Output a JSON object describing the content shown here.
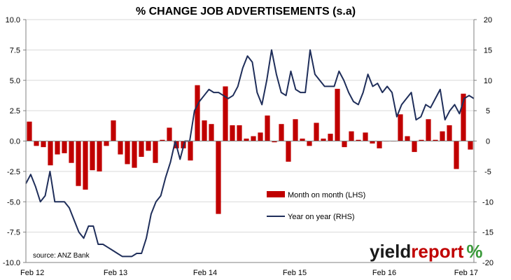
{
  "chart_data": {
    "type": "bar",
    "title": "% CHANGE JOB ADVERTISEMENTS (s.a)",
    "source": "source: ANZ Bank",
    "logo": {
      "text_dark": "yield",
      "text_accent": "report",
      "symbol": "%",
      "colors": {
        "dark": "#1a1a1a",
        "accent": "#c00000",
        "symbol": "#3a9a3a"
      }
    },
    "x_tick_labels": [
      "Feb 12",
      "Feb 13",
      "Feb 14",
      "Feb 15",
      "Feb 16",
      "Feb 17"
    ],
    "y_left": {
      "ticks": [
        "10.0",
        "7.5",
        "5.0",
        "2.5",
        "0.0",
        "-2.5",
        "-5.0",
        "-7.5",
        "-10.0"
      ],
      "ylim": [
        -10,
        10
      ]
    },
    "y_right": {
      "ticks": [
        "20",
        "15",
        "10",
        "5",
        "0",
        "-5",
        "-10",
        "-15",
        "-20"
      ],
      "ylim": [
        -20,
        20
      ]
    },
    "grid": "horizontal",
    "legend_position": "lower-center",
    "series": [
      {
        "name": "Month on month (LHS)",
        "axis": "left",
        "kind": "bar",
        "color": "#c00000",
        "values": [
          1.6,
          -0.4,
          -0.5,
          -2.0,
          -1.1,
          -1.0,
          -1.8,
          -3.7,
          -4.0,
          -2.4,
          -2.5,
          -0.4,
          1.7,
          -1.1,
          -1.9,
          -2.2,
          -1.3,
          -0.8,
          -1.8,
          0.1,
          1.1,
          -0.6,
          -0.6,
          -1.6,
          4.6,
          1.7,
          1.4,
          -6.0,
          4.5,
          1.3,
          1.3,
          0.2,
          0.4,
          0.7,
          2.1,
          -0.1,
          1.4,
          -1.7,
          1.8,
          0.2,
          -0.4,
          1.5,
          0.2,
          0.6,
          4.3,
          -0.5,
          0.8,
          0.1,
          0.7,
          -0.2,
          -0.6,
          0.0,
          0.0,
          2.2,
          0.4,
          -0.9,
          0.1,
          1.8,
          0.1,
          0.8,
          1.3,
          -2.3,
          3.9,
          -0.7
        ]
      },
      {
        "name": "Year on year (RHS)",
        "axis": "right",
        "kind": "line",
        "color": "#1f2e5a",
        "values": [
          -7,
          -5.5,
          -7.5,
          -10,
          -9,
          -5,
          -10,
          -10,
          -10,
          -11,
          -13,
          -15,
          -16,
          -14,
          -14,
          -17,
          -17,
          -17.5,
          -18,
          -18.5,
          -19,
          -19,
          -19,
          -18.5,
          -18.5,
          -16,
          -12,
          -10,
          -9,
          -6,
          -3.5,
          0,
          -3,
          0,
          0,
          5,
          6.5,
          7.5,
          8.5,
          8,
          8,
          7.5,
          7,
          7.5,
          9,
          12,
          14,
          13,
          8,
          6,
          10,
          15,
          11,
          8,
          7.5,
          11.5,
          8.5,
          8,
          8,
          15,
          11,
          10,
          9,
          9,
          9,
          11.5,
          10,
          8,
          6.5,
          6,
          8,
          11,
          9,
          9.5,
          8,
          9,
          8,
          4,
          6,
          7,
          8,
          3.5,
          4,
          6,
          5.5,
          7,
          8.5,
          3.5,
          5,
          6,
          4.5,
          7,
          7.5,
          7
        ]
      }
    ]
  }
}
